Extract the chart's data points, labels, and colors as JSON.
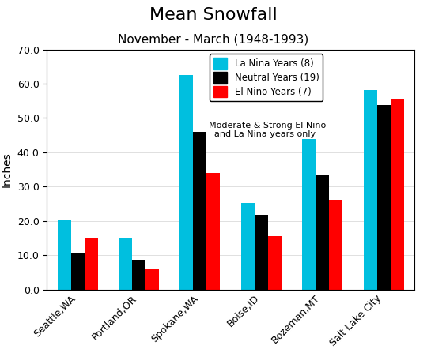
{
  "title": "Mean Snowfall",
  "subtitle": "November - March (1948-1993)",
  "ylabel": "Inches",
  "ylim": [
    0,
    70
  ],
  "yticks": [
    0.0,
    10.0,
    20.0,
    30.0,
    40.0,
    50.0,
    60.0,
    70.0
  ],
  "cities": [
    "Seattle,WA",
    "Portland,OR",
    "Spokane,WA",
    "Boise,ID",
    "Bozeman,MT",
    "Salt Lake City"
  ],
  "la_nina": [
    20.5,
    14.8,
    62.5,
    25.2,
    43.8,
    58.2
  ],
  "neutral": [
    10.5,
    8.7,
    46.0,
    21.7,
    33.5,
    53.8
  ],
  "el_nino": [
    14.8,
    6.0,
    34.0,
    15.5,
    26.2,
    55.7
  ],
  "color_la_nina": "#00BFDF",
  "color_neutral": "#000000",
  "color_el_nino": "#FF0000",
  "legend_labels": [
    "La Nina Years (8)",
    "Neutral Years (19)",
    "El Nino Years (7)"
  ],
  "annotation_line1": "Moderate & Strong El Nino",
  "annotation_line2": "  and La Nina years only",
  "title_fontsize": 16,
  "subtitle_fontsize": 11,
  "label_fontsize": 10,
  "tick_fontsize": 9,
  "bar_width": 0.22,
  "background_color": "#ffffff"
}
